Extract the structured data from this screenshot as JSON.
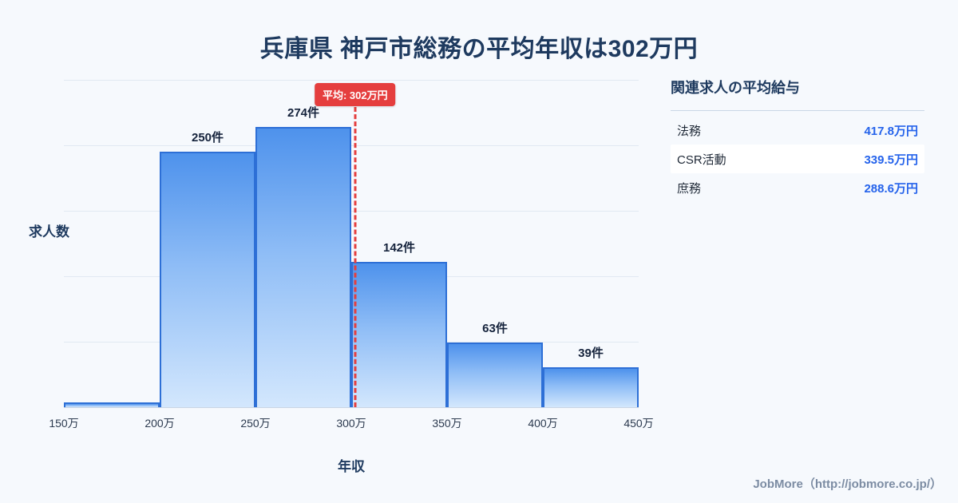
{
  "page": {
    "title": "兵庫県 神戸市総務の平均年収は302万円",
    "footer": "JobMore（http://jobmore.co.jp/）"
  },
  "chart_data": {
    "type": "bar",
    "title": "兵庫県 神戸市総務の平均年収は302万円",
    "xlabel": "年収",
    "ylabel": "求人数",
    "x_range": [
      150,
      450
    ],
    "bin_width": 50,
    "bin_edges": [
      150,
      200,
      250,
      300,
      350,
      400,
      450
    ],
    "bin_edge_labels": [
      "150万",
      "200万",
      "250万",
      "300万",
      "350万",
      "400万",
      "450万"
    ],
    "values": [
      5,
      250,
      274,
      142,
      63,
      39
    ],
    "bar_labels": [
      "",
      "250件",
      "274件",
      "142件",
      "63件",
      "39件"
    ],
    "ylim": [
      0,
      320
    ],
    "grid": true,
    "legend": "none",
    "average": {
      "value": 302,
      "label": "平均: 302万円"
    },
    "colors": {
      "background": "#f6f9fd",
      "bar_fill_top": "#4e92ec",
      "bar_fill_bottom": "#d3e7fd",
      "bar_border": "#2d6fd6",
      "average_red": "#e53e3e",
      "value_blue": "#2563eb",
      "title_navy": "#1e3a5f"
    }
  },
  "related_panel": {
    "title": "関連求人の平均給与",
    "rows": [
      {
        "label": "法務",
        "value": "417.8万円"
      },
      {
        "label": "CSR活動",
        "value": "339.5万円"
      },
      {
        "label": "庶務",
        "value": "288.6万円"
      }
    ]
  }
}
